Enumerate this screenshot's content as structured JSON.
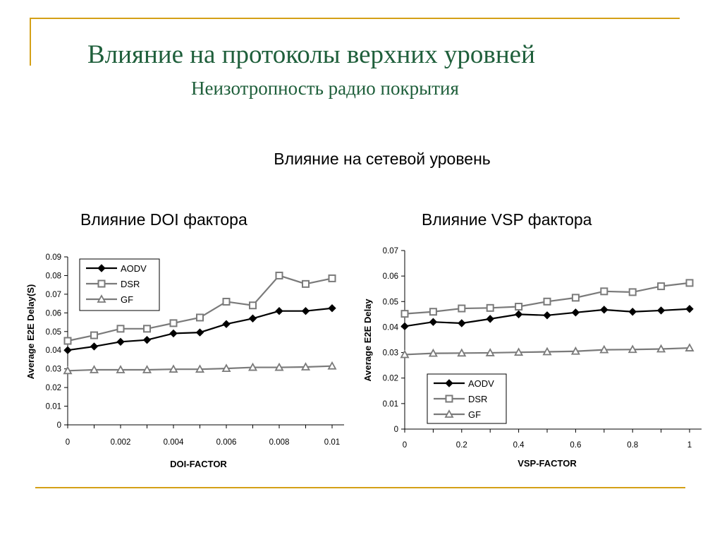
{
  "slide": {
    "title": "Влияние на протоколы верхних уровней",
    "subtitle": "Неизотропность радио покрытия",
    "section_heading": "Влияние на сетевой уровень",
    "left_panel_heading": "Влияние DOI фактора",
    "right_panel_heading": "Влияние VSP фактора"
  },
  "colors": {
    "accent_line": "#d4a017",
    "title": "#1f5f3b"
  },
  "chart_data": [
    {
      "type": "line",
      "xlabel": "DOI-FACTOR",
      "ylabel": "Average E2E Delay(S)",
      "x": [
        0,
        0.001,
        0.002,
        0.003,
        0.004,
        0.005,
        0.006,
        0.007,
        0.008,
        0.009,
        0.01
      ],
      "xticks": [
        "0",
        "0.002",
        "0.004",
        "0.006",
        "0.008",
        "0.01"
      ],
      "xlim": [
        0,
        0.01
      ],
      "ylim": [
        0,
        0.09
      ],
      "yticks": [
        "0",
        "0.01",
        "0.02",
        "0.03",
        "0.04",
        "0.05",
        "0.06",
        "0.07",
        "0.08",
        "0.09"
      ],
      "legend": "top-left",
      "grid": false,
      "series": [
        {
          "name": "AODV",
          "marker": "diamond",
          "color": "#000000",
          "values": [
            0.04,
            0.042,
            0.0445,
            0.0455,
            0.049,
            0.0495,
            0.054,
            0.057,
            0.061,
            0.061,
            0.0625
          ]
        },
        {
          "name": "DSR",
          "marker": "square",
          "color": "#7a7a7a",
          "values": [
            0.045,
            0.048,
            0.0515,
            0.0515,
            0.0545,
            0.0575,
            0.066,
            0.064,
            0.08,
            0.0755,
            0.0785
          ]
        },
        {
          "name": "GF",
          "marker": "triangle",
          "color": "#7a7a7a",
          "values": [
            0.029,
            0.0295,
            0.0295,
            0.0295,
            0.0298,
            0.0298,
            0.0302,
            0.0308,
            0.0308,
            0.031,
            0.0315
          ]
        }
      ]
    },
    {
      "type": "line",
      "xlabel": "VSP-FACTOR",
      "ylabel": "Average E2E Delay",
      "x": [
        0,
        0.1,
        0.2,
        0.3,
        0.4,
        0.5,
        0.6,
        0.7,
        0.8,
        0.9,
        1
      ],
      "xticks": [
        "0",
        "0.2",
        "0.4",
        "0.6",
        "0.8",
        "1"
      ],
      "xlim": [
        0,
        1
      ],
      "ylim": [
        0,
        0.07
      ],
      "yticks": [
        "0",
        "0.01",
        "0.02",
        "0.03",
        "0.04",
        "0.05",
        "0.06",
        "0.07"
      ],
      "legend": "bottom-left",
      "grid": false,
      "series": [
        {
          "name": "AODV",
          "marker": "diamond",
          "color": "#000000",
          "values": [
            0.0403,
            0.042,
            0.0415,
            0.0432,
            0.045,
            0.0446,
            0.0457,
            0.0468,
            0.046,
            0.0465,
            0.0471
          ]
        },
        {
          "name": "DSR",
          "marker": "square",
          "color": "#7a7a7a",
          "values": [
            0.0452,
            0.046,
            0.0473,
            0.0475,
            0.048,
            0.05,
            0.0515,
            0.054,
            0.0537,
            0.056,
            0.0573
          ]
        },
        {
          "name": "GF",
          "marker": "triangle",
          "color": "#7a7a7a",
          "values": [
            0.0292,
            0.0297,
            0.0298,
            0.0299,
            0.0301,
            0.0303,
            0.0305,
            0.0311,
            0.0312,
            0.0314,
            0.0318
          ]
        }
      ]
    }
  ]
}
